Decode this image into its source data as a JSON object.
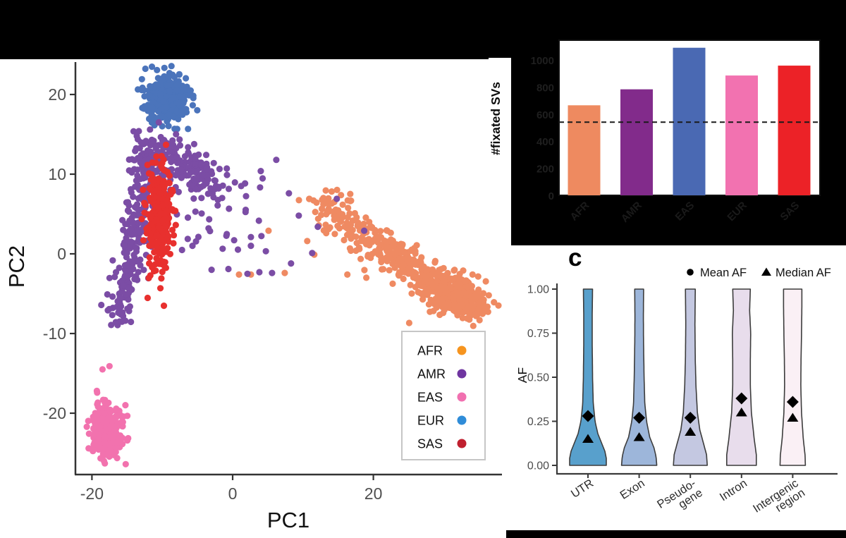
{
  "figure": {
    "panel_c_label": "c",
    "colors": {
      "background": "#000000",
      "panel_white": "#ffffff",
      "axis_line": "#333333",
      "tick_text_gray": "#4f4f4f",
      "near_black_text": "#1a1a1a"
    }
  },
  "chart_data": [
    {
      "type": "scatter",
      "name": "pca-population-scatter",
      "xlabel": "PC1",
      "ylabel": "PC2",
      "xticks": [
        -20,
        0,
        20
      ],
      "xtick_labels": [
        "-20",
        "0",
        "20"
      ],
      "yticks": [
        20,
        10,
        0,
        -10,
        -20
      ],
      "ytick_labels": [
        "20",
        "10",
        "0",
        "-10",
        "-20"
      ],
      "xlim": [
        -24,
        38
      ],
      "ylim": [
        -28,
        24
      ],
      "point_radius": 4.6,
      "legend": [
        {
          "label": "AFR",
          "color": "#F6941E"
        },
        {
          "label": "AMR",
          "color": "#6F35A0"
        },
        {
          "label": "EAS",
          "color": "#F170B0"
        },
        {
          "label": "EUR",
          "color": "#2F8CD8"
        },
        {
          "label": "SAS",
          "color": "#C0202F"
        }
      ],
      "series": [
        {
          "name": "EUR",
          "color": "#4B74BB",
          "clusters": [
            {
              "type": "blob",
              "n": 330,
              "c": [
                -9.2,
                19.4
              ],
              "sd": [
                1.55,
                1.45
              ]
            }
          ]
        },
        {
          "name": "AFR",
          "color": "#EF8A62",
          "clusters": [
            {
              "type": "band",
              "n": 470,
              "from": [
                12.5,
                6.3
              ],
              "to": [
                34.5,
                -6.9
              ],
              "sd": [
                1.5,
                1.2
              ],
              "power": 0.75
            },
            {
              "type": "blob",
              "n": 130,
              "c": [
                31.3,
                -5.0
              ],
              "sd": [
                2.2,
                1.4
              ]
            },
            {
              "type": "points",
              "pts": [
                [
                  -14.6,
                  1.5
                ],
                [
                  0.9,
                  -2.6
                ],
                [
                  2.6,
                  -2.6
                ],
                [
                  7.4,
                  -2.4
                ],
                [
                  10.6,
                  1.6
                ],
                [
                  10.9,
                  6.9
                ],
                [
                  12.9,
                  7.0
                ],
                [
                  16.3,
                  -2.6
                ],
                [
                  13.3,
                  2.6
                ],
                [
                  5.1,
                  2.9
                ],
                [
                  16.8,
                  0.4
                ],
                [
                  11.6,
                  -0.1
                ],
                [
                  19.0,
                  -3.0
                ]
              ]
            }
          ]
        },
        {
          "name": "AMR",
          "color": "#7B4DA5",
          "clusters": [
            {
              "type": "band",
              "n": 250,
              "from": [
                -16.4,
                -8.2
              ],
              "to": [
                -11.4,
                11.6
              ],
              "sd": [
                1.0,
                1.5
              ],
              "power": 1
            },
            {
              "type": "blob",
              "n": 90,
              "c": [
                -11.6,
                12.3
              ],
              "sd": [
                1.4,
                1.4
              ]
            },
            {
              "type": "band",
              "n": 140,
              "from": [
                -10.2,
                13.6
              ],
              "to": [
                -2.2,
                8.4
              ],
              "sd": [
                1.3,
                1.1
              ],
              "power": 1
            },
            {
              "type": "uniform",
              "n": 42,
              "x": [
                -9,
                5
              ],
              "y": [
                0.3,
                10.6
              ]
            },
            {
              "type": "points",
              "pts": [
                [
                  6.2,
                  11.8
                ],
                [
                  18.7,
                  2.9
                ],
                [
                  12.1,
                  3.4
                ],
                [
                  8.3,
                  -1.2
                ],
                [
                  5.6,
                  -2.4
                ],
                [
                  11.3,
                  0.1
                ],
                [
                  3.8,
                  -2.3
                ],
                [
                  9.4,
                  4.8
                ],
                [
                  14.8,
                  6.9
                ],
                [
                  2.1,
                  -2.5
                ],
                [
                  -0.6,
                  -1.9
                ],
                [
                  8.0,
                  7.6
                ],
                [
                  -3.0,
                  -2.0
                ]
              ]
            }
          ]
        },
        {
          "name": "EAS",
          "color": "#F272AE",
          "clusters": [
            {
              "type": "blob",
              "n": 285,
              "c": [
                -17.8,
                -22.2
              ],
              "sd": [
                1.25,
                1.7
              ]
            },
            {
              "type": "points",
              "pts": [
                [
                  -18.5,
                  -14.5
                ],
                [
                  -17.5,
                  -14.1
                ],
                [
                  -19.3,
                  -17.2
                ]
              ]
            }
          ]
        },
        {
          "name": "SAS",
          "color": "#E8302E",
          "clusters": [
            {
              "type": "blob",
              "n": 300,
              "c": [
                -10.4,
                4.6
              ],
              "sd": [
                0.85,
                3.2
              ]
            }
          ]
        }
      ]
    },
    {
      "type": "bar",
      "name": "fixated-svs-per-population",
      "ylabel": "#fixated SVs",
      "categories": [
        "AFR",
        "AMR",
        "EAS",
        "EUR",
        "SAS"
      ],
      "values": [
        665,
        783,
        1090,
        885,
        958
      ],
      "bar_colors": [
        "#EE8A60",
        "#822B8B",
        "#4A69B3",
        "#F272B0",
        "#EC2227"
      ],
      "dashed_line_value": 540,
      "yticks": [
        0,
        200,
        400,
        600,
        800,
        1000
      ],
      "ytick_labels": [
        "0",
        "200",
        "400",
        "600",
        "800",
        "1000"
      ],
      "ylim": [
        0,
        1145
      ]
    },
    {
      "type": "violin",
      "name": "af-by-genomic-region",
      "panel_label": "c",
      "ylabel": "AF",
      "yticks": [
        1.0,
        0.75,
        0.5,
        0.25,
        0.0
      ],
      "ytick_labels": [
        "1.00",
        "0.75",
        "0.50",
        "0.25",
        "0.00"
      ],
      "legend": [
        {
          "marker": "circle",
          "label": "Mean AF"
        },
        {
          "marker": "triangle",
          "label": "Median AF"
        }
      ],
      "categories": [
        {
          "label_lines": [
            "UTR"
          ]
        },
        {
          "label_lines": [
            "Exon"
          ]
        },
        {
          "label_lines": [
            "Pseudo-",
            "gene"
          ]
        },
        {
          "label_lines": [
            "Intron"
          ]
        },
        {
          "label_lines": [
            "Intergenic",
            "region"
          ]
        }
      ],
      "fills": [
        "#58A0CC",
        "#9DB6DA",
        "#C4C8E1",
        "#E8DDEC",
        "#FAF0F5"
      ],
      "outline_color": "#3C3C3C",
      "mean_af": [
        0.28,
        0.27,
        0.27,
        0.38,
        0.36
      ],
      "median_af": [
        0.15,
        0.16,
        0.19,
        0.3,
        0.27
      ],
      "width_profiles": [
        [
          [
            0,
            26
          ],
          [
            0.04,
            26
          ],
          [
            0.08,
            24
          ],
          [
            0.12,
            20
          ],
          [
            0.18,
            14
          ],
          [
            0.25,
            10
          ],
          [
            0.35,
            7.5
          ],
          [
            0.5,
            6.5
          ],
          [
            0.7,
            6
          ],
          [
            0.85,
            6
          ],
          [
            1,
            6.5
          ]
        ],
        [
          [
            0,
            25
          ],
          [
            0.05,
            24
          ],
          [
            0.1,
            21
          ],
          [
            0.16,
            15
          ],
          [
            0.25,
            10.5
          ],
          [
            0.35,
            8
          ],
          [
            0.5,
            7
          ],
          [
            0.7,
            6.2
          ],
          [
            0.85,
            6
          ],
          [
            1,
            6.3
          ]
        ],
        [
          [
            0,
            24
          ],
          [
            0.06,
            23
          ],
          [
            0.12,
            19
          ],
          [
            0.2,
            13.5
          ],
          [
            0.3,
            10
          ],
          [
            0.45,
            8
          ],
          [
            0.6,
            7
          ],
          [
            0.8,
            6.5
          ],
          [
            1,
            7
          ]
        ],
        [
          [
            0,
            21
          ],
          [
            0.06,
            21
          ],
          [
            0.15,
            18
          ],
          [
            0.3,
            14
          ],
          [
            0.45,
            12.5
          ],
          [
            0.6,
            12.5
          ],
          [
            0.75,
            13
          ],
          [
            0.88,
            11.5
          ],
          [
            1,
            12.5
          ]
        ],
        [
          [
            0,
            18
          ],
          [
            0.06,
            17.5
          ],
          [
            0.15,
            15
          ],
          [
            0.3,
            12.5
          ],
          [
            0.45,
            11.5
          ],
          [
            0.6,
            11.8
          ],
          [
            0.75,
            12.5
          ],
          [
            0.9,
            13
          ],
          [
            1,
            13
          ]
        ]
      ]
    }
  ]
}
